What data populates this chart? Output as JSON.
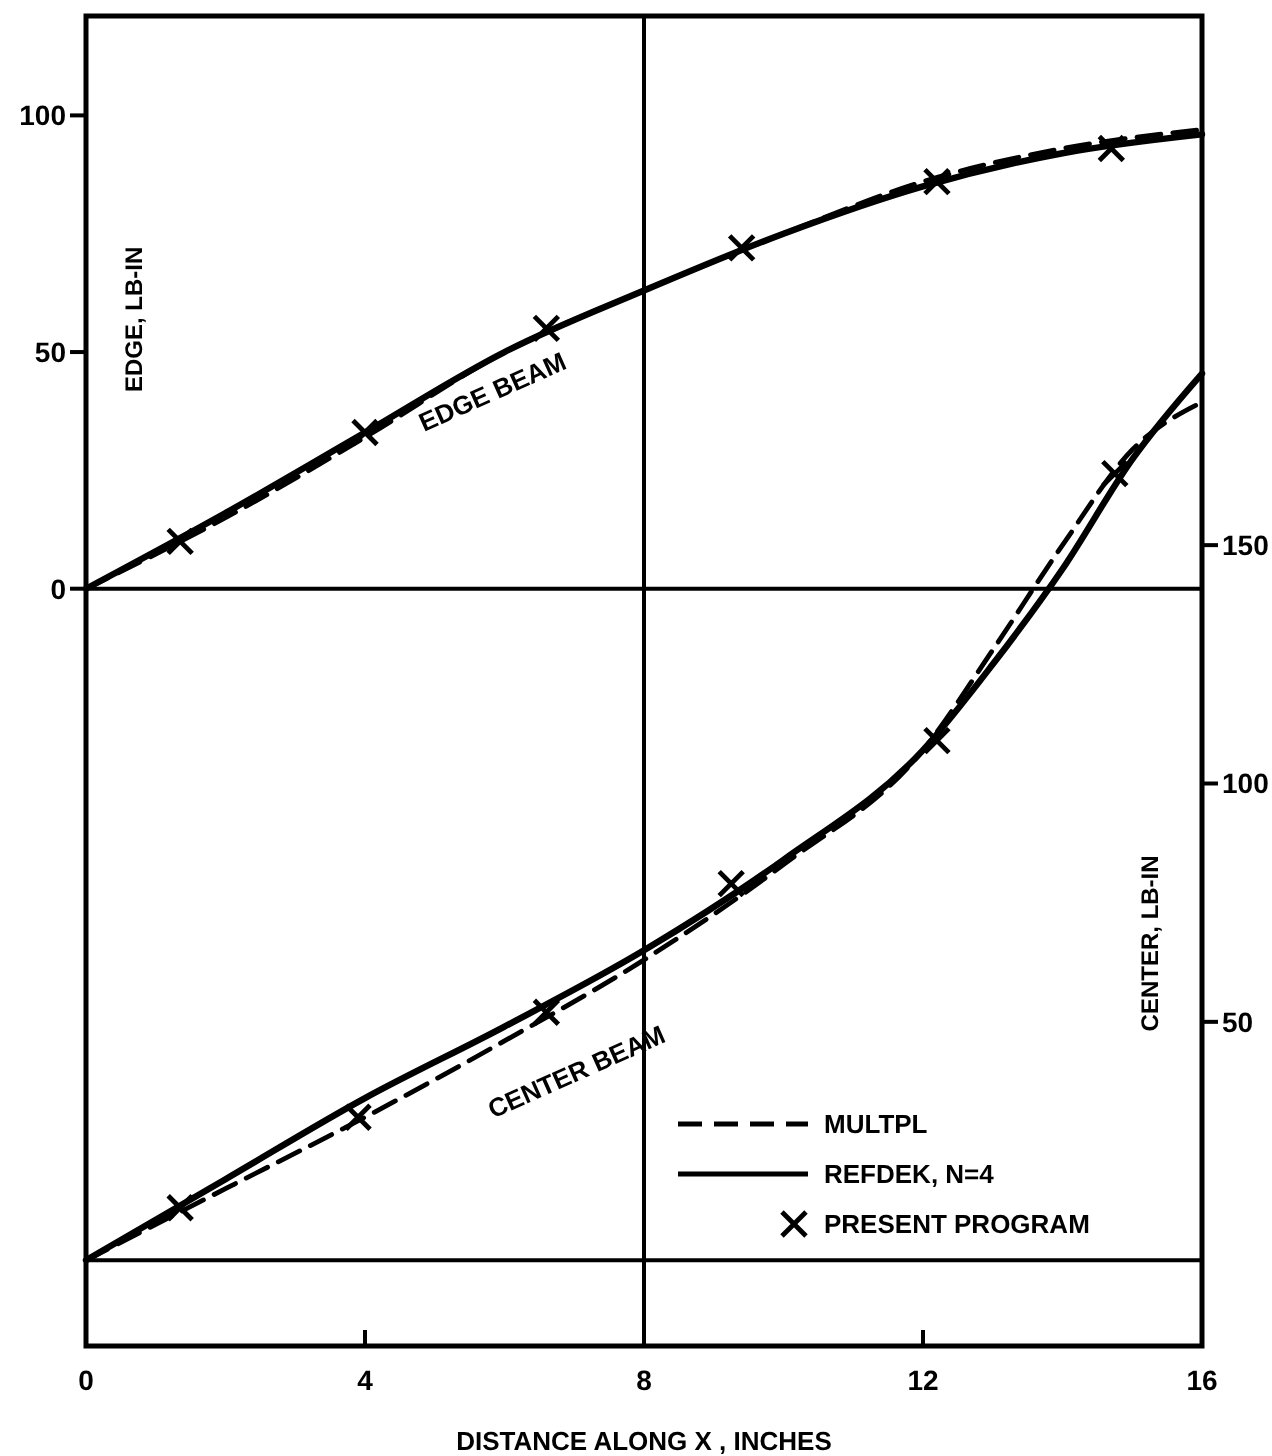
{
  "chart_data": {
    "type": "line",
    "xlabel": "DISTANCE ALONG X , INCHES",
    "ylabel": "EDGE, LB-IN",
    "y2label": "CENTER, LB-IN",
    "xlim": [
      0,
      16
    ],
    "xticks": [
      0,
      4,
      8,
      12,
      16
    ],
    "ylim": [
      -160,
      121
    ],
    "yticks": [
      0,
      50,
      100
    ],
    "y2lim": [
      -18,
      261
    ],
    "y2ticks": [
      50,
      100,
      150
    ],
    "grid": false,
    "legend": "bottom right",
    "ref_lines": [
      {
        "axis": "x",
        "value": 8,
        "color": "#000000"
      },
      {
        "axis": "y",
        "value": 0,
        "color": "#000000"
      },
      {
        "axis": "y2",
        "value": 0,
        "color": "#000000"
      }
    ],
    "annotations": [
      "EDGE BEAM",
      "CENTER BEAM"
    ],
    "series": [
      {
        "name": "MULTPL",
        "line_style": "dashed",
        "marker": "none",
        "color": "#000000",
        "x": [
          0,
          2,
          4,
          6,
          8,
          10,
          12,
          14,
          16
        ],
        "values": [
          0,
          15,
          32,
          50,
          63,
          75,
          86,
          93,
          97
        ]
      },
      {
        "name": "REFDEK, N=4",
        "line_style": "solid",
        "marker": "none",
        "color": "#000000",
        "x": [
          0,
          2,
          4,
          6,
          8,
          10,
          12,
          14,
          16
        ],
        "values": [
          0,
          16,
          33,
          50,
          63,
          75,
          85,
          92,
          96
        ]
      },
      {
        "name": "PRESENT PROGRAM",
        "type": "scatter",
        "marker": "cross",
        "color": "#000000",
        "x": [
          1.35,
          4,
          6.6,
          9.4,
          12.2,
          14.7
        ],
        "values": [
          10,
          33,
          55,
          72,
          86,
          93
        ]
      },
      {
        "line_style": "dashed",
        "marker": "none",
        "color": "#000000",
        "axis": "y2",
        "x": [
          0,
          2,
          4,
          6,
          8,
          10,
          12,
          13,
          14,
          15,
          16
        ],
        "values": [
          0,
          15,
          30,
          46,
          63,
          83,
          107,
          128,
          150,
          170,
          180
        ]
      },
      {
        "line_style": "solid",
        "marker": "none",
        "color": "#000000",
        "axis": "y2",
        "x": [
          0,
          2,
          4,
          6,
          8,
          10,
          12,
          13,
          14,
          15,
          16
        ],
        "values": [
          0,
          17,
          34,
          49,
          65,
          84,
          107,
          125,
          145,
          168,
          186
        ]
      },
      {
        "type": "scatter",
        "marker": "cross",
        "color": "#000000",
        "axis": "y2",
        "x": [
          1.35,
          3.9,
          6.6,
          9.25,
          12.2,
          14.75
        ],
        "values": [
          11,
          30,
          52,
          79,
          109,
          165
        ]
      }
    ]
  }
}
